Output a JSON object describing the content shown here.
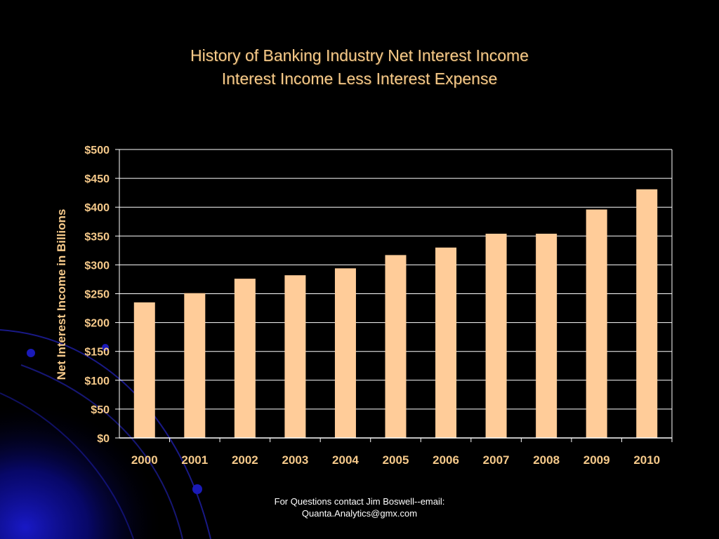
{
  "slide": {
    "title_line1": "History of Banking Industry Net Interest Income",
    "title_line2": "Interest Income Less Interest Expense",
    "footer_line1": "For Questions contact Jim Boswell--email:",
    "footer_line2": "Quanta.Analytics@gmx.com"
  },
  "colors": {
    "background": "#000000",
    "title_text": "#f5c98a",
    "axis_text": "#f5c98a",
    "bar_fill": "#ffcc99",
    "grid": "#ffffff",
    "decor_blue": "#0a0a8a"
  },
  "chart_data": {
    "type": "bar",
    "title": "History of Banking Industry Net Interest Income",
    "subtitle": "Interest Income Less Interest Expense",
    "xlabel": "",
    "ylabel": "Net Interest Income in Billions",
    "categories": [
      "2000",
      "2001",
      "2002",
      "2003",
      "2004",
      "2005",
      "2006",
      "2007",
      "2008",
      "2009",
      "2010"
    ],
    "values": [
      235,
      251,
      276,
      282,
      294,
      317,
      330,
      354,
      354,
      396,
      431
    ],
    "ylim": [
      0,
      500
    ],
    "yticks": [
      0,
      50,
      100,
      150,
      200,
      250,
      300,
      350,
      400,
      450,
      500
    ],
    "ytick_labels": [
      "$0",
      "$50",
      "$100",
      "$150",
      "$200",
      "$250",
      "$300",
      "$350",
      "$400",
      "$450",
      "$500"
    ],
    "grid": true,
    "legend": "none"
  }
}
